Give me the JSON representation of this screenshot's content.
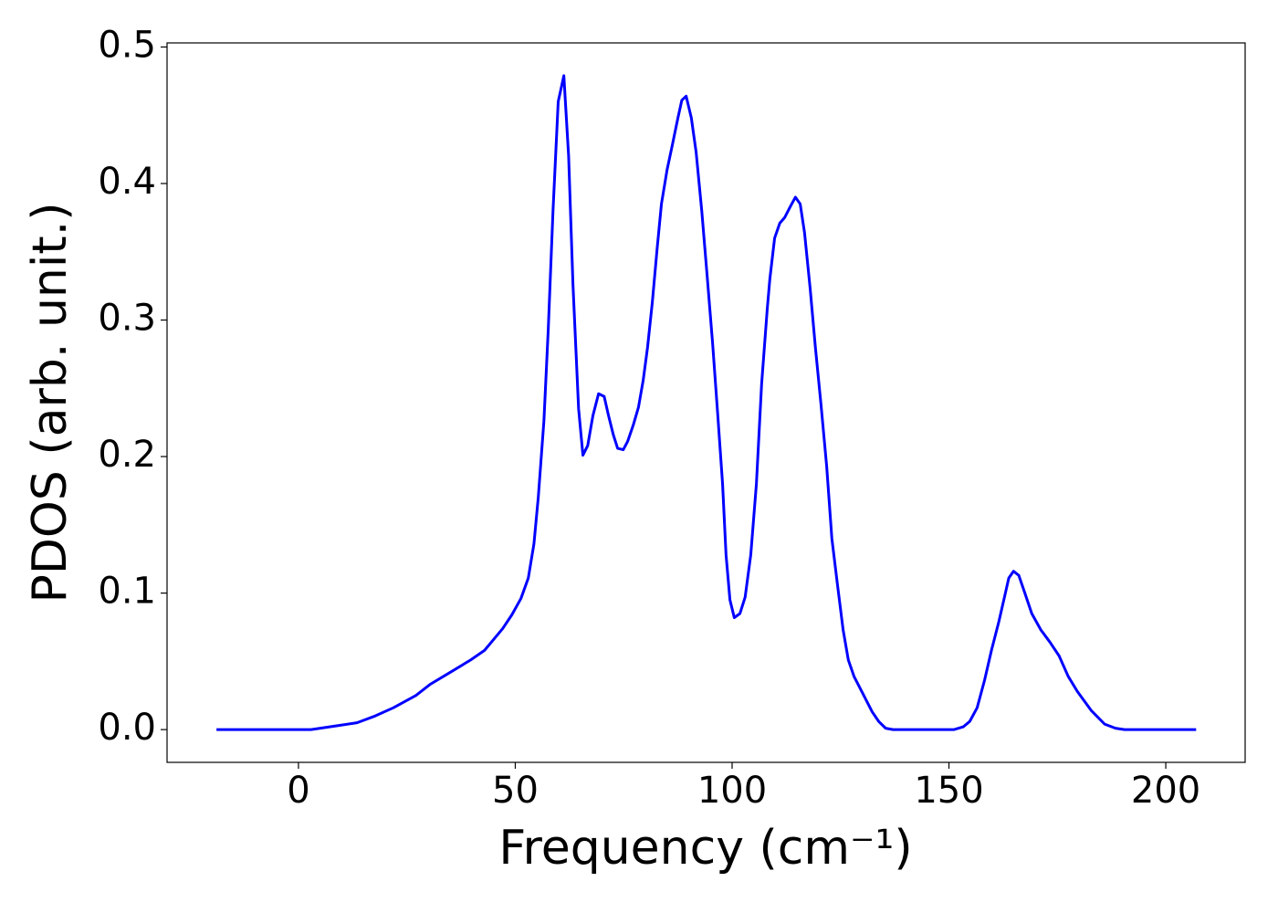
{
  "chart_data": {
    "type": "line",
    "xlabel": "Frequency (cm⁻¹)",
    "ylabel": "PDOS (arb. unit.)",
    "xlim": [
      -30.3,
      218.3
    ],
    "xticks": [
      0,
      50,
      100,
      150,
      200
    ],
    "ylim": [
      -0.024,
      0.503
    ],
    "yticks": [
      {
        "value": 0,
        "label": "0.0"
      },
      0.1,
      0.2,
      0.3,
      0.4,
      0.5
    ],
    "grid": false,
    "series": [
      {
        "name": "PDOS",
        "color": "#0000ff",
        "x": [
          -18.9,
          0,
          2.9,
          9.3,
          13.5,
          17.7,
          21.9,
          27.1,
          30.3,
          34.5,
          39.7,
          42.9,
          45.0,
          47.1,
          49.2,
          51.3,
          53.0,
          54.3,
          55.3,
          56.6,
          57.6,
          58.7,
          59.9,
          61.2,
          62.3,
          63.3,
          64.6,
          65.6,
          66.7,
          67.9,
          69.2,
          70.5,
          71.5,
          72.6,
          73.6,
          74.9,
          75.9,
          77.2,
          78.4,
          79.5,
          80.5,
          81.6,
          82.7,
          83.7,
          85.0,
          86.2,
          87.5,
          88.4,
          89.4,
          90.6,
          91.7,
          93.0,
          94.2,
          95.5,
          96.7,
          97.8,
          98.6,
          99.5,
          100.5,
          101.8,
          103.0,
          104.3,
          105.6,
          106.8,
          108.1,
          108.7,
          109.8,
          111.0,
          112.1,
          113.4,
          114.6,
          115.7,
          116.7,
          118.0,
          119.2,
          120.5,
          121.8,
          123.0,
          124.3,
          125.6,
          126.8,
          128.1,
          130.2,
          132.3,
          133.8,
          135.4,
          137.1,
          151.2,
          153.3,
          154.8,
          156.5,
          158.2,
          159.8,
          161.5,
          162.8,
          163.8,
          164.9,
          166.1,
          167.4,
          169.1,
          171.2,
          173.3,
          175.4,
          177.5,
          179.6,
          182.8,
          185.9,
          188.4,
          190.5,
          207
        ],
        "values": [
          0,
          0,
          0,
          0.003,
          0.005,
          0.01,
          0.016,
          0.025,
          0.033,
          0.041,
          0.051,
          0.058,
          0.066,
          0.074,
          0.084,
          0.096,
          0.111,
          0.136,
          0.17,
          0.226,
          0.293,
          0.38,
          0.46,
          0.479,
          0.42,
          0.326,
          0.235,
          0.201,
          0.208,
          0.23,
          0.246,
          0.244,
          0.23,
          0.216,
          0.206,
          0.205,
          0.211,
          0.223,
          0.236,
          0.256,
          0.28,
          0.313,
          0.352,
          0.385,
          0.41,
          0.428,
          0.448,
          0.461,
          0.464,
          0.448,
          0.423,
          0.38,
          0.334,
          0.283,
          0.23,
          0.18,
          0.128,
          0.095,
          0.082,
          0.085,
          0.097,
          0.128,
          0.18,
          0.253,
          0.308,
          0.33,
          0.36,
          0.371,
          0.375,
          0.383,
          0.39,
          0.385,
          0.364,
          0.323,
          0.28,
          0.238,
          0.193,
          0.14,
          0.106,
          0.073,
          0.051,
          0.039,
          0.026,
          0.013,
          0.006,
          0.001,
          0,
          0,
          0.002,
          0.006,
          0.016,
          0.036,
          0.058,
          0.079,
          0.097,
          0.111,
          0.116,
          0.113,
          0.101,
          0.085,
          0.073,
          0.064,
          0.054,
          0.039,
          0.028,
          0.014,
          0.004,
          0.001,
          0,
          0
        ]
      }
    ]
  }
}
